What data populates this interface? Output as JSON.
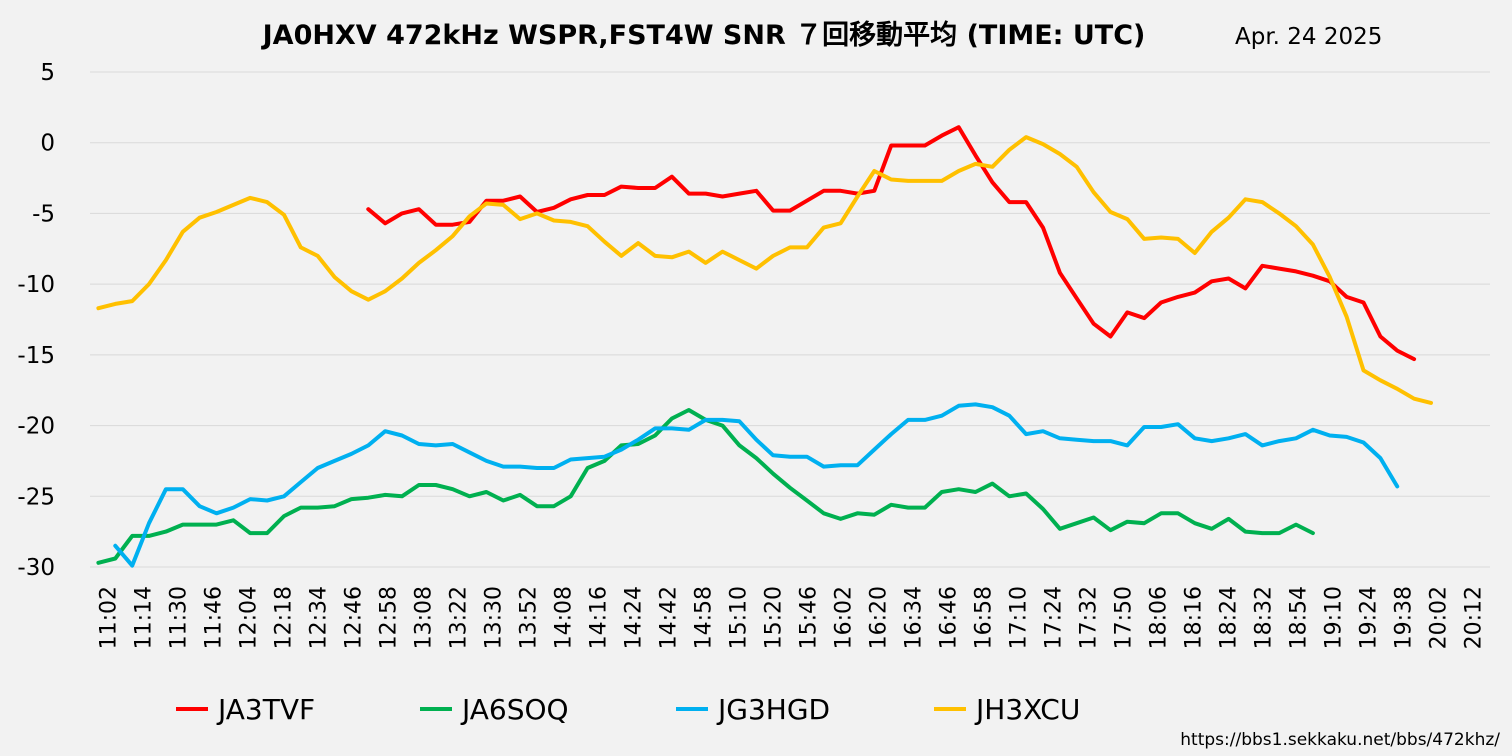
{
  "chart_data": {
    "type": "line",
    "title": "JA0HXV 472kHz WSPR,FST4W SNR ７回移動平均 (TIME: UTC)",
    "date": "Apr. 24 2025",
    "url": "https://bbs1.sekkaku.net/bbs/472khz/",
    "ylim": [
      -30,
      5
    ],
    "yticks": [
      5,
      0,
      -5,
      -10,
      -15,
      -20,
      -25,
      -30
    ],
    "xtick_labels": [
      "11:02",
      "11:14",
      "11:30",
      "11:46",
      "12:04",
      "12:18",
      "12:34",
      "12:46",
      "12:58",
      "13:08",
      "13:22",
      "13:30",
      "13:52",
      "14:08",
      "14:16",
      "14:24",
      "14:42",
      "14:58",
      "15:10",
      "15:20",
      "15:46",
      "16:02",
      "16:20",
      "16:34",
      "16:46",
      "16:58",
      "17:10",
      "17:24",
      "17:32",
      "17:50",
      "18:06",
      "18:16",
      "18:24",
      "18:32",
      "18:54",
      "19:10",
      "19:24",
      "19:38",
      "20:02",
      "20:12"
    ],
    "point_count": 83,
    "series": [
      {
        "name": "JA3TVF",
        "color": "#ff0000",
        "start": 16,
        "values": [
          -4.7,
          -5.7,
          -5.0,
          -4.7,
          -5.8,
          -5.8,
          -5.6,
          -4.1,
          -4.1,
          -3.8,
          -4.9,
          -4.6,
          -4.0,
          -3.7,
          -3.7,
          -3.1,
          -3.2,
          -3.2,
          -2.4,
          -3.6,
          -3.6,
          -3.8,
          -3.6,
          -3.4,
          -4.8,
          -4.8,
          -4.1,
          -3.4,
          -3.4,
          -3.6,
          -3.4,
          -0.2,
          -0.2,
          -0.2,
          0.5,
          1.1,
          -0.9,
          -2.8,
          -4.2,
          -4.2,
          -6.0,
          -9.2,
          -11.0,
          -12.8,
          -13.7,
          -12.0,
          -12.4,
          -11.3,
          -10.9,
          -10.6,
          -9.8,
          -9.6,
          -10.3,
          -8.7,
          -8.9,
          -9.1,
          -9.4,
          -9.8,
          -10.9,
          -11.3,
          -13.7,
          -14.7,
          -15.3
        ]
      },
      {
        "name": "JA6SOQ",
        "color": "#00b050",
        "start": 0,
        "values": [
          -29.7,
          -29.4,
          -27.8,
          -27.8,
          -27.5,
          -27.0,
          -27.0,
          -27.0,
          -26.7,
          -27.6,
          -27.6,
          -26.4,
          -25.8,
          -25.8,
          -25.7,
          -25.2,
          -25.1,
          -24.9,
          -25.0,
          -24.2,
          -24.2,
          -24.5,
          -25.0,
          -24.7,
          -25.3,
          -24.9,
          -25.7,
          -25.7,
          -25.0,
          -23.0,
          -22.5,
          -21.4,
          -21.3,
          -20.7,
          -19.5,
          -18.9,
          -19.6,
          -20.0,
          -21.4,
          -22.3,
          -23.4,
          -24.4,
          -25.3,
          -26.2,
          -26.6,
          -26.2,
          -26.3,
          -25.6,
          -25.8,
          -25.8,
          -24.7,
          -24.5,
          -24.7,
          -24.1,
          -25.0,
          -24.8,
          -25.9,
          -27.3,
          -26.9,
          -26.5,
          -27.4,
          -26.8,
          -26.9,
          -26.2,
          -26.2,
          -26.9,
          -27.3,
          -26.6,
          -27.5,
          -27.6,
          -27.6,
          -27.0,
          -27.6
        ]
      },
      {
        "name": "JG3HGD",
        "color": "#00b0f0",
        "start": 1,
        "values": [
          -28.5,
          -29.9,
          -26.9,
          -24.5,
          -24.5,
          -25.7,
          -26.2,
          -25.8,
          -25.2,
          -25.3,
          -25.0,
          -24.0,
          -23.0,
          -22.5,
          -22.0,
          -21.4,
          -20.4,
          -20.7,
          -21.3,
          -21.4,
          -21.3,
          -21.9,
          -22.5,
          -22.9,
          -22.9,
          -23.0,
          -23.0,
          -22.4,
          -22.3,
          -22.2,
          -21.7,
          -21.0,
          -20.2,
          -20.2,
          -20.3,
          -19.6,
          -19.6,
          -19.7,
          -21.0,
          -22.1,
          -22.2,
          -22.2,
          -22.9,
          -22.8,
          -22.8,
          -21.7,
          -20.6,
          -19.6,
          -19.6,
          -19.3,
          -18.6,
          -18.5,
          -18.7,
          -19.3,
          -20.6,
          -20.4,
          -20.9,
          -21.0,
          -21.1,
          -21.1,
          -21.4,
          -20.1,
          -20.1,
          -19.9,
          -20.9,
          -21.1,
          -20.9,
          -20.6,
          -21.4,
          -21.1,
          -20.9,
          -20.3,
          -20.7,
          -20.8,
          -21.2,
          -22.3,
          -24.3
        ]
      },
      {
        "name": "JH3XCU",
        "color": "#ffc000",
        "start": 0,
        "values": [
          -11.7,
          -11.4,
          -11.2,
          -10.0,
          -8.3,
          -6.3,
          -5.3,
          -4.9,
          -4.4,
          -3.9,
          -4.2,
          -5.1,
          -7.4,
          -8.0,
          -9.5,
          -10.5,
          -11.1,
          -10.5,
          -9.6,
          -8.5,
          -7.6,
          -6.6,
          -5.2,
          -4.3,
          -4.4,
          -5.4,
          -5.0,
          -5.5,
          -5.6,
          -5.9,
          -7.0,
          -8.0,
          -7.1,
          -8.0,
          -8.1,
          -7.7,
          -8.5,
          -7.7,
          -8.3,
          -8.9,
          -8.0,
          -7.4,
          -7.4,
          -6.0,
          -5.7,
          -3.8,
          -2.0,
          -2.6,
          -2.7,
          -2.7,
          -2.7,
          -2.0,
          -1.5,
          -1.7,
          -0.5,
          0.4,
          -0.1,
          -0.8,
          -1.7,
          -3.5,
          -4.9,
          -5.4,
          -6.8,
          -6.7,
          -6.8,
          -7.8,
          -6.3,
          -5.3,
          -4.0,
          -4.2,
          -5.0,
          -5.9,
          -7.2,
          -9.5,
          -12.3,
          -16.1,
          -16.8,
          -17.4,
          -18.1,
          -18.4
        ]
      }
    ]
  }
}
